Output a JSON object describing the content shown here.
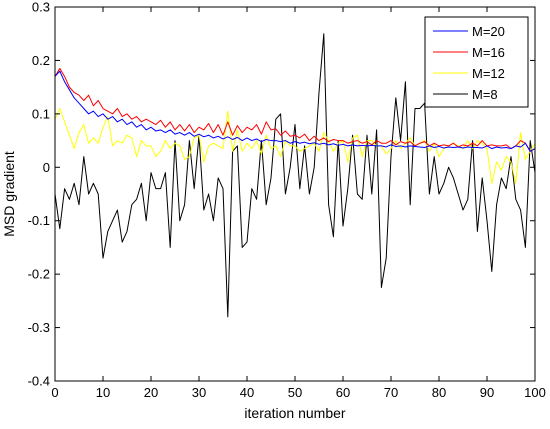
{
  "chart_data": {
    "type": "line",
    "xlabel": "iteration number",
    "ylabel": "MSD gradient",
    "xlim": [
      0,
      100
    ],
    "ylim": [
      -0.4,
      0.3
    ],
    "xticks": [
      "0",
      "10",
      "20",
      "30",
      "40",
      "50",
      "60",
      "70",
      "80",
      "90",
      "100"
    ],
    "yticks": [
      "-0.4",
      "-0.3",
      "-0.2",
      "-0.1",
      "0",
      "0.1",
      "0.2",
      "0.3"
    ],
    "grid": false,
    "legend_position": "top-right",
    "x": [
      0,
      1,
      2,
      3,
      4,
      5,
      6,
      7,
      8,
      9,
      10,
      11,
      12,
      13,
      14,
      15,
      16,
      17,
      18,
      19,
      20,
      21,
      22,
      23,
      24,
      25,
      26,
      27,
      28,
      29,
      30,
      31,
      32,
      33,
      34,
      35,
      36,
      37,
      38,
      39,
      40,
      41,
      42,
      43,
      44,
      45,
      46,
      47,
      48,
      49,
      50,
      51,
      52,
      53,
      54,
      55,
      56,
      57,
      58,
      59,
      60,
      61,
      62,
      63,
      64,
      65,
      66,
      67,
      68,
      69,
      70,
      71,
      72,
      73,
      74,
      75,
      76,
      77,
      78,
      79,
      80,
      81,
      82,
      83,
      84,
      85,
      86,
      87,
      88,
      89,
      90,
      91,
      92,
      93,
      94,
      95,
      96,
      97,
      98,
      99,
      100
    ],
    "series": [
      {
        "name": "M=20",
        "color": "#0000ff",
        "values": [
          0.17,
          0.18,
          0.16,
          0.145,
          0.13,
          0.12,
          0.11,
          0.1,
          0.105,
          0.095,
          0.1,
          0.09,
          0.095,
          0.085,
          0.09,
          0.08,
          0.085,
          0.075,
          0.08,
          0.07,
          0.075,
          0.068,
          0.07,
          0.065,
          0.07,
          0.062,
          0.065,
          0.06,
          0.065,
          0.058,
          0.062,
          0.057,
          0.06,
          0.055,
          0.058,
          0.053,
          0.057,
          0.052,
          0.056,
          0.05,
          0.055,
          0.05,
          0.053,
          0.048,
          0.052,
          0.05,
          0.05,
          0.048,
          0.05,
          0.045,
          0.048,
          0.045,
          0.047,
          0.044,
          0.046,
          0.043,
          0.045,
          0.042,
          0.044,
          0.041,
          0.043,
          0.04,
          0.042,
          0.04,
          0.041,
          0.04,
          0.041,
          0.04,
          0.04,
          0.038,
          0.042,
          0.039,
          0.04,
          0.038,
          0.04,
          0.039,
          0.038,
          0.037,
          0.04,
          0.037,
          0.039,
          0.036,
          0.038,
          0.037,
          0.038,
          0.036,
          0.038,
          0.037,
          0.037,
          0.036,
          0.04,
          0.035,
          0.038,
          0.036,
          0.037,
          0.035,
          0.04,
          0.038,
          0.045,
          0.03,
          0.035
        ]
      },
      {
        "name": "M=16",
        "color": "#ff0000",
        "values": [
          0.17,
          0.185,
          0.17,
          0.15,
          0.14,
          0.135,
          0.125,
          0.135,
          0.115,
          0.125,
          0.11,
          0.105,
          0.1,
          0.11,
          0.095,
          0.1,
          0.09,
          0.095,
          0.085,
          0.09,
          0.085,
          0.08,
          0.088,
          0.075,
          0.085,
          0.07,
          0.08,
          0.068,
          0.08,
          0.065,
          0.075,
          0.07,
          0.082,
          0.065,
          0.08,
          0.06,
          0.085,
          0.06,
          0.078,
          0.065,
          0.075,
          0.07,
          0.08,
          0.062,
          0.085,
          0.07,
          0.072,
          0.06,
          0.068,
          0.058,
          0.06,
          0.055,
          0.062,
          0.05,
          0.058,
          0.05,
          0.055,
          0.048,
          0.052,
          0.05,
          0.05,
          0.045,
          0.048,
          0.05,
          0.045,
          0.048,
          0.042,
          0.05,
          0.045,
          0.045,
          0.05,
          0.042,
          0.048,
          0.045,
          0.048,
          0.04,
          0.045,
          0.048,
          0.04,
          0.045,
          0.04,
          0.042,
          0.04,
          0.045,
          0.038,
          0.042,
          0.04,
          0.045,
          0.04,
          0.05,
          0.04,
          0.042,
          0.04,
          0.04,
          0.042,
          0.035,
          0.04,
          0.05,
          0.045,
          0.03,
          0.035
        ]
      },
      {
        "name": "M=12",
        "color": "#ffff00",
        "values": [
          0.09,
          0.11,
          0.085,
          0.06,
          0.035,
          0.065,
          0.08,
          0.045,
          0.055,
          0.045,
          0.075,
          0.095,
          0.04,
          0.05,
          0.045,
          0.06,
          0.055,
          0.02,
          0.05,
          0.04,
          0.04,
          0.02,
          0.03,
          0.05,
          0.035,
          0.045,
          0.04,
          0.015,
          0.02,
          0.055,
          0.06,
          0.01,
          0.04,
          0.045,
          0.04,
          0.035,
          0.105,
          0.03,
          0.07,
          0.03,
          0.045,
          0.035,
          0.05,
          0.025,
          0.06,
          0.035,
          0.04,
          0.02,
          0.05,
          0.04,
          0.04,
          0.03,
          0.035,
          0.04,
          0.045,
          0.03,
          0.065,
          0.05,
          0.03,
          0.045,
          0.05,
          0.01,
          0.055,
          0.06,
          0.02,
          0.05,
          0.05,
          0.04,
          0.04,
          0.025,
          0.035,
          0.05,
          0.035,
          0.045,
          0.055,
          0.04,
          0.045,
          0.05,
          0.03,
          0.045,
          0.02,
          0.035,
          0.04,
          0.045,
          0.04,
          0.035,
          0.05,
          0.035,
          0.05,
          0.045,
          0.035,
          -0.03,
          0.01,
          -0.005,
          0.02,
          0.01,
          -0.03,
          0.065,
          0.015,
          0.03,
          0.045
        ]
      },
      {
        "name": "M=8",
        "color": "#000000",
        "values": [
          -0.05,
          -0.115,
          -0.04,
          -0.06,
          -0.03,
          -0.07,
          0.02,
          -0.05,
          -0.03,
          -0.05,
          -0.17,
          -0.12,
          -0.1,
          -0.08,
          -0.14,
          -0.12,
          -0.07,
          -0.06,
          -0.03,
          -0.1,
          -0.01,
          -0.04,
          -0.04,
          -0.01,
          -0.15,
          0.05,
          -0.1,
          -0.07,
          0.05,
          -0.04,
          0.06,
          -0.08,
          -0.05,
          -0.1,
          -0.02,
          -0.04,
          -0.28,
          0.03,
          0.04,
          -0.15,
          -0.14,
          -0.04,
          -0.06,
          0.05,
          -0.07,
          -0.02,
          0.09,
          0.1,
          -0.05,
          0.0,
          0.08,
          -0.04,
          0.04,
          -0.05,
          0.0,
          0.14,
          0.25,
          -0.07,
          -0.13,
          0.05,
          -0.11,
          -0.04,
          0.06,
          -0.05,
          -0.06,
          0.06,
          -0.05,
          0.07,
          -0.225,
          -0.17,
          0.02,
          0.13,
          0.05,
          0.16,
          -0.07,
          0.11,
          0.11,
          0.12,
          -0.05,
          0.02,
          -0.05,
          -0.03,
          0.0,
          -0.02,
          -0.05,
          -0.08,
          -0.06,
          0.05,
          -0.12,
          -0.02,
          -0.1,
          -0.195,
          -0.07,
          -0.02,
          -0.04,
          0.02,
          -0.06,
          -0.08,
          -0.15,
          0.05,
          -0.01
        ]
      }
    ]
  }
}
